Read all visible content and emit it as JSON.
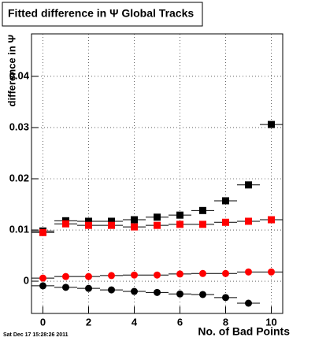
{
  "chart_data": {
    "type": "scatter",
    "title": "Fitted difference in Ψ Global Tracks",
    "y_label": "difference in Ψ",
    "x_label": "No. of Bad Points",
    "timestamp": "Sat Dec 17 15:28:26 2011",
    "x": [
      0,
      1,
      2,
      3,
      4,
      5,
      6,
      7,
      8,
      9,
      10
    ],
    "series": [
      {
        "color": "#000000",
        "marker": "square",
        "values": [
          0.0098,
          0.0118,
          0.0117,
          0.0117,
          0.012,
          0.0125,
          0.0129,
          0.0138,
          0.0157,
          0.0188,
          0.0306
        ]
      },
      {
        "color": "#ff0000",
        "marker": "square",
        "values": [
          0.0095,
          0.0112,
          0.0109,
          0.0109,
          0.0106,
          0.0109,
          0.0111,
          0.0111,
          0.0115,
          0.0117,
          0.012
        ]
      },
      {
        "color": "#ff0000",
        "marker": "circle",
        "values": [
          0.0006,
          0.0009,
          0.0009,
          0.0011,
          0.0012,
          0.0012,
          0.0014,
          0.0015,
          0.0015,
          0.0018,
          0.0018
        ]
      },
      {
        "color": "#000000",
        "marker": "circle",
        "values": [
          -0.0009,
          -0.0012,
          -0.0014,
          -0.0017,
          -0.002,
          -0.0022,
          -0.0025,
          -0.0026,
          -0.0032,
          -0.0043,
          null
        ]
      }
    ],
    "xlim": [
      -0.5,
      10.5
    ],
    "xticks": [
      0,
      2,
      4,
      6,
      8,
      10
    ],
    "ylim": [
      -0.0063,
      0.0483
    ],
    "yticks": [
      0,
      0.01,
      0.02,
      0.03,
      0.04
    ],
    "grid": true,
    "bin_halfwidth": 0.5
  }
}
